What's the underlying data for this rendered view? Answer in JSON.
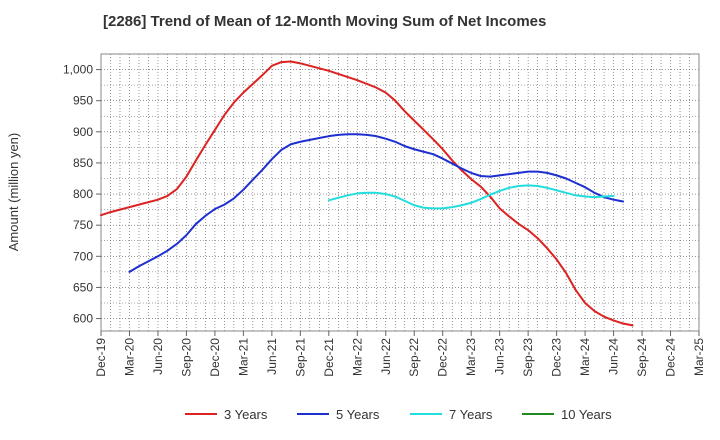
{
  "chart_data": {
    "type": "line",
    "title": "[2286]  Trend of Mean of 12-Month Moving Sum of Net Incomes",
    "xlabel": "",
    "ylabel": "Amount (million yen)",
    "x": [
      "Dec-19",
      "Mar-20",
      "Jun-20",
      "Sep-20",
      "Dec-20",
      "Mar-21",
      "Jun-21",
      "Sep-21",
      "Dec-21",
      "Mar-22",
      "Jun-22",
      "Sep-22",
      "Dec-22",
      "Mar-23",
      "Jun-23",
      "Sep-23",
      "Dec-23",
      "Mar-24",
      "Jun-24",
      "Sep-24",
      "Dec-24",
      "Mar-25"
    ],
    "ylim": [
      580,
      1025
    ],
    "yticks": [
      600,
      650,
      700,
      750,
      800,
      850,
      900,
      950,
      1000
    ],
    "ytick_labels": [
      "600",
      "650",
      "700",
      "750",
      "800",
      "850",
      "900",
      "950",
      "1,000"
    ],
    "grid": true,
    "legend_position": "bottom",
    "series": [
      {
        "name": "3 Years",
        "color": "#dd2222",
        "points": [
          [
            "Dec-19",
            766
          ],
          [
            "Jan-20",
            771
          ],
          [
            "Feb-20",
            775
          ],
          [
            "Mar-20",
            779
          ],
          [
            "Apr-20",
            783
          ],
          [
            "May-20",
            787
          ],
          [
            "Jun-20",
            791
          ],
          [
            "Jul-20",
            797
          ],
          [
            "Aug-20",
            808
          ],
          [
            "Sep-20",
            828
          ],
          [
            "Oct-20",
            854
          ],
          [
            "Nov-20",
            879
          ],
          [
            "Dec-20",
            903
          ],
          [
            "Jan-21",
            927
          ],
          [
            "Feb-21",
            947
          ],
          [
            "Mar-21",
            963
          ],
          [
            "Apr-21",
            977
          ],
          [
            "May-21",
            991
          ],
          [
            "Jun-21",
            1006
          ],
          [
            "Jul-21",
            1012
          ],
          [
            "Aug-21",
            1013
          ],
          [
            "Sep-21",
            1010
          ],
          [
            "Oct-21",
            1006
          ],
          [
            "Nov-21",
            1002
          ],
          [
            "Dec-21",
            998
          ],
          [
            "Jan-22",
            993
          ],
          [
            "Feb-22",
            988
          ],
          [
            "Mar-22",
            983
          ],
          [
            "Apr-22",
            977
          ],
          [
            "May-22",
            971
          ],
          [
            "Jun-22",
            963
          ],
          [
            "Jul-22",
            950
          ],
          [
            "Aug-22",
            933
          ],
          [
            "Sep-22",
            918
          ],
          [
            "Oct-22",
            903
          ],
          [
            "Nov-22",
            888
          ],
          [
            "Dec-22",
            872
          ],
          [
            "Jan-23",
            854
          ],
          [
            "Feb-23",
            838
          ],
          [
            "Mar-23",
            824
          ],
          [
            "Apr-23",
            812
          ],
          [
            "May-23",
            796
          ],
          [
            "Jun-23",
            777
          ],
          [
            "Jul-23",
            764
          ],
          [
            "Aug-23",
            752
          ],
          [
            "Sep-23",
            742
          ],
          [
            "Oct-23",
            729
          ],
          [
            "Nov-23",
            713
          ],
          [
            "Dec-23",
            695
          ],
          [
            "Jan-24",
            673
          ],
          [
            "Feb-24",
            646
          ],
          [
            "Mar-24",
            625
          ],
          [
            "Apr-24",
            612
          ],
          [
            "May-24",
            603
          ],
          [
            "Jun-24",
            597
          ],
          [
            "Jul-24",
            592
          ],
          [
            "Aug-24",
            589
          ]
        ]
      },
      {
        "name": "5 Years",
        "color": "#1e2fd0",
        "points": [
          [
            "Mar-20",
            675
          ],
          [
            "Apr-20",
            684
          ],
          [
            "May-20",
            692
          ],
          [
            "Jun-20",
            700
          ],
          [
            "Jul-20",
            709
          ],
          [
            "Aug-20",
            720
          ],
          [
            "Sep-20",
            734
          ],
          [
            "Oct-20",
            752
          ],
          [
            "Nov-20",
            765
          ],
          [
            "Dec-20",
            776
          ],
          [
            "Jan-21",
            783
          ],
          [
            "Feb-21",
            793
          ],
          [
            "Mar-21",
            807
          ],
          [
            "Apr-21",
            823
          ],
          [
            "May-21",
            839
          ],
          [
            "Jun-21",
            856
          ],
          [
            "Jul-21",
            871
          ],
          [
            "Aug-21",
            880
          ],
          [
            "Sep-21",
            884
          ],
          [
            "Oct-21",
            887
          ],
          [
            "Nov-21",
            890
          ],
          [
            "Dec-21",
            893
          ],
          [
            "Jan-22",
            895
          ],
          [
            "Feb-22",
            896
          ],
          [
            "Mar-22",
            896
          ],
          [
            "Apr-22",
            895
          ],
          [
            "May-22",
            893
          ],
          [
            "Jun-22",
            889
          ],
          [
            "Jul-22",
            884
          ],
          [
            "Aug-22",
            877
          ],
          [
            "Sep-22",
            872
          ],
          [
            "Oct-22",
            868
          ],
          [
            "Nov-22",
            864
          ],
          [
            "Dec-22",
            857
          ],
          [
            "Jan-23",
            849
          ],
          [
            "Feb-23",
            841
          ],
          [
            "Mar-23",
            834
          ],
          [
            "Apr-23",
            829
          ],
          [
            "May-23",
            828
          ],
          [
            "Jun-23",
            830
          ],
          [
            "Jul-23",
            832
          ],
          [
            "Aug-23",
            834
          ],
          [
            "Sep-23",
            836
          ],
          [
            "Oct-23",
            836
          ],
          [
            "Nov-23",
            834
          ],
          [
            "Dec-23",
            830
          ],
          [
            "Jan-24",
            825
          ],
          [
            "Feb-24",
            818
          ],
          [
            "Mar-24",
            811
          ],
          [
            "Apr-24",
            802
          ],
          [
            "May-24",
            795
          ],
          [
            "Jun-24",
            791
          ],
          [
            "Jul-24",
            788
          ]
        ]
      },
      {
        "name": "7 Years",
        "color": "#22dddd",
        "points": [
          [
            "Dec-21",
            790
          ],
          [
            "Jan-22",
            794
          ],
          [
            "Feb-22",
            798
          ],
          [
            "Mar-22",
            801
          ],
          [
            "Apr-22",
            802
          ],
          [
            "May-22",
            802
          ],
          [
            "Jun-22",
            800
          ],
          [
            "Jul-22",
            796
          ],
          [
            "Aug-22",
            789
          ],
          [
            "Sep-22",
            782
          ],
          [
            "Oct-22",
            778
          ],
          [
            "Nov-22",
            777
          ],
          [
            "Dec-22",
            777
          ],
          [
            "Jan-23",
            779
          ],
          [
            "Feb-23",
            782
          ],
          [
            "Mar-23",
            786
          ],
          [
            "Apr-23",
            792
          ],
          [
            "May-23",
            799
          ],
          [
            "Jun-23",
            805
          ],
          [
            "Jul-23",
            810
          ],
          [
            "Aug-23",
            813
          ],
          [
            "Sep-23",
            814
          ],
          [
            "Oct-23",
            813
          ],
          [
            "Nov-23",
            810
          ],
          [
            "Dec-23",
            806
          ],
          [
            "Jan-24",
            802
          ],
          [
            "Feb-24",
            798
          ],
          [
            "Mar-24",
            796
          ],
          [
            "Apr-24",
            795
          ],
          [
            "May-24",
            796
          ],
          [
            "Jun-24",
            797
          ]
        ]
      },
      {
        "name": "10 Years",
        "color": "#228822",
        "points": []
      }
    ]
  }
}
